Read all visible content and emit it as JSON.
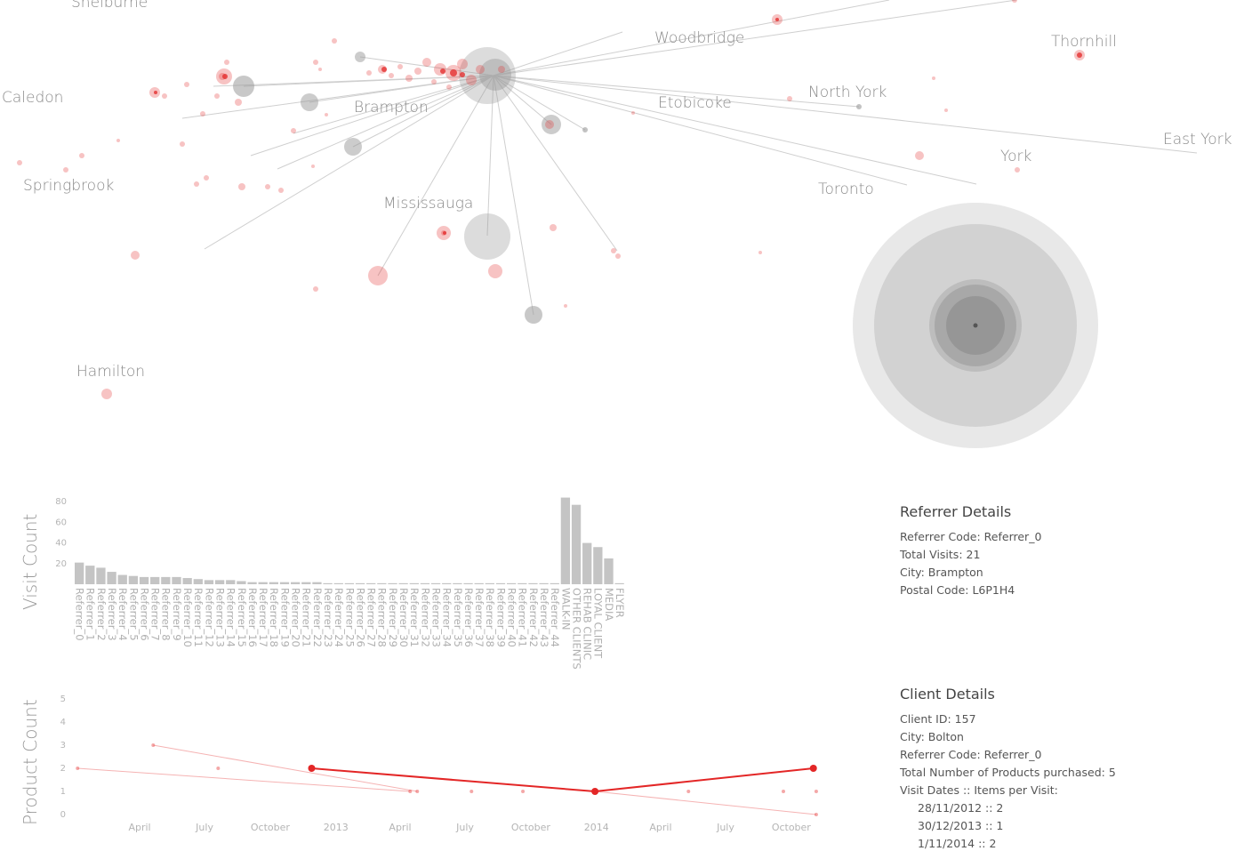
{
  "map": {
    "cities": [
      {
        "name": "Shelburne"
      },
      {
        "name": "Woodbridge"
      },
      {
        "name": "Thornhill"
      },
      {
        "name": "Caledon"
      },
      {
        "name": "Brampton"
      },
      {
        "name": "Etobicoke"
      },
      {
        "name": "North York"
      },
      {
        "name": "East York"
      },
      {
        "name": "York"
      },
      {
        "name": "Springbrook"
      },
      {
        "name": "Mississauga"
      },
      {
        "name": "Toronto"
      },
      {
        "name": "Hamilton"
      }
    ]
  },
  "referrer_chart": {
    "ylabel": "Visit Count",
    "ticks": [
      20,
      40,
      60,
      80
    ],
    "categories": [
      "Referrer_0",
      "Referrer_1",
      "Referrer_2",
      "Referrer_3",
      "Referrer_4",
      "Referrer_5",
      "Referrer_6",
      "Referrer_7",
      "Referrer_8",
      "Referrer_9",
      "Referrer_10",
      "Referrer_11",
      "Referrer_12",
      "Referrer_13",
      "Referrer_14",
      "Referrer_15",
      "Referrer_16",
      "Referrer_17",
      "Referrer_18",
      "Referrer_19",
      "Referrer_20",
      "Referrer_21",
      "Referrer_22",
      "Referrer_23",
      "Referrer_24",
      "Referrer_25",
      "Referrer_26",
      "Referrer_27",
      "Referrer_28",
      "Referrer_29",
      "Referrer_30",
      "Referrer_31",
      "Referrer_32",
      "Referrer_33",
      "Referrer_34",
      "Referrer_35",
      "Referrer_36",
      "Referrer_37",
      "Referrer_38",
      "Referrer_39",
      "Referrer_40",
      "Referrer_41",
      "Referrer_42",
      "Referrer_43",
      "Referrer_44",
      "WALK-IN",
      "OTHER CLIENTS",
      "REHAB CLINIC",
      "LOYAL CLIENT",
      "MEDIA",
      "FLYER"
    ],
    "values": [
      21,
      18,
      16,
      12,
      9,
      8,
      7,
      7,
      7,
      7,
      6,
      5,
      4,
      4,
      4,
      3,
      2,
      2,
      2,
      2,
      2,
      2,
      2,
      1,
      1,
      1,
      1,
      1,
      1,
      1,
      1,
      1,
      1,
      1,
      1,
      1,
      1,
      1,
      1,
      1,
      1,
      1,
      1,
      1,
      1,
      84,
      77,
      40,
      36,
      25,
      1
    ]
  },
  "product_chart": {
    "ylabel": "Product Count",
    "yticks": [
      "0",
      "1",
      "2",
      "3",
      "4",
      "5"
    ],
    "xticks": [
      "April",
      "July",
      "October",
      "2013",
      "April",
      "July",
      "October",
      "2014",
      "April",
      "July",
      "October"
    ],
    "highlight": {
      "dates": [
        "2012-11-28",
        "2013-12-30",
        "2014-11-01"
      ],
      "values": [
        2,
        1,
        2
      ]
    },
    "background": [
      {
        "dates": [
          "2012-01-05",
          "2013-04-15"
        ],
        "values": [
          2,
          1
        ]
      },
      {
        "dates": [
          "2012-04-20",
          "2013-04-25"
        ],
        "values": [
          3,
          1
        ]
      },
      {
        "dates": [
          "2013-12-30",
          "2014-11-05"
        ],
        "values": [
          1,
          0
        ]
      },
      {
        "dates": [
          "2012-07-20"
        ],
        "values": [
          2
        ]
      },
      {
        "dates": [
          "2013-07-10"
        ],
        "values": [
          1
        ]
      },
      {
        "dates": [
          "2013-09-20"
        ],
        "values": [
          1
        ]
      },
      {
        "dates": [
          "2014-05-10"
        ],
        "values": [
          1
        ]
      },
      {
        "dates": [
          "2014-09-20"
        ],
        "values": [
          1
        ]
      },
      {
        "dates": [
          "2014-11-05"
        ],
        "values": [
          1
        ]
      }
    ]
  },
  "referrer_details": {
    "title": "Referrer Details",
    "code": "Referrer Code: Referrer_0",
    "visits": "Total Visits: 21",
    "city": "City: Brampton",
    "postal": "Postal Code: L6P1H4"
  },
  "client_details": {
    "title": "Client Details",
    "id": "Client ID: 157",
    "city": "City: Bolton",
    "code": "Referrer Code: Referrer_0",
    "products": "Total Number of Products purchased: 5",
    "visits_header": "Visit Dates :: Items per Visit:",
    "visits": [
      "28/11/2012 :: 2",
      "30/12/2013 :: 1",
      "1/11/2014 :: 2"
    ]
  },
  "colors": {
    "accent": "#e32626",
    "bar": "#c4c4c4",
    "hub": "#9a9a9a"
  }
}
